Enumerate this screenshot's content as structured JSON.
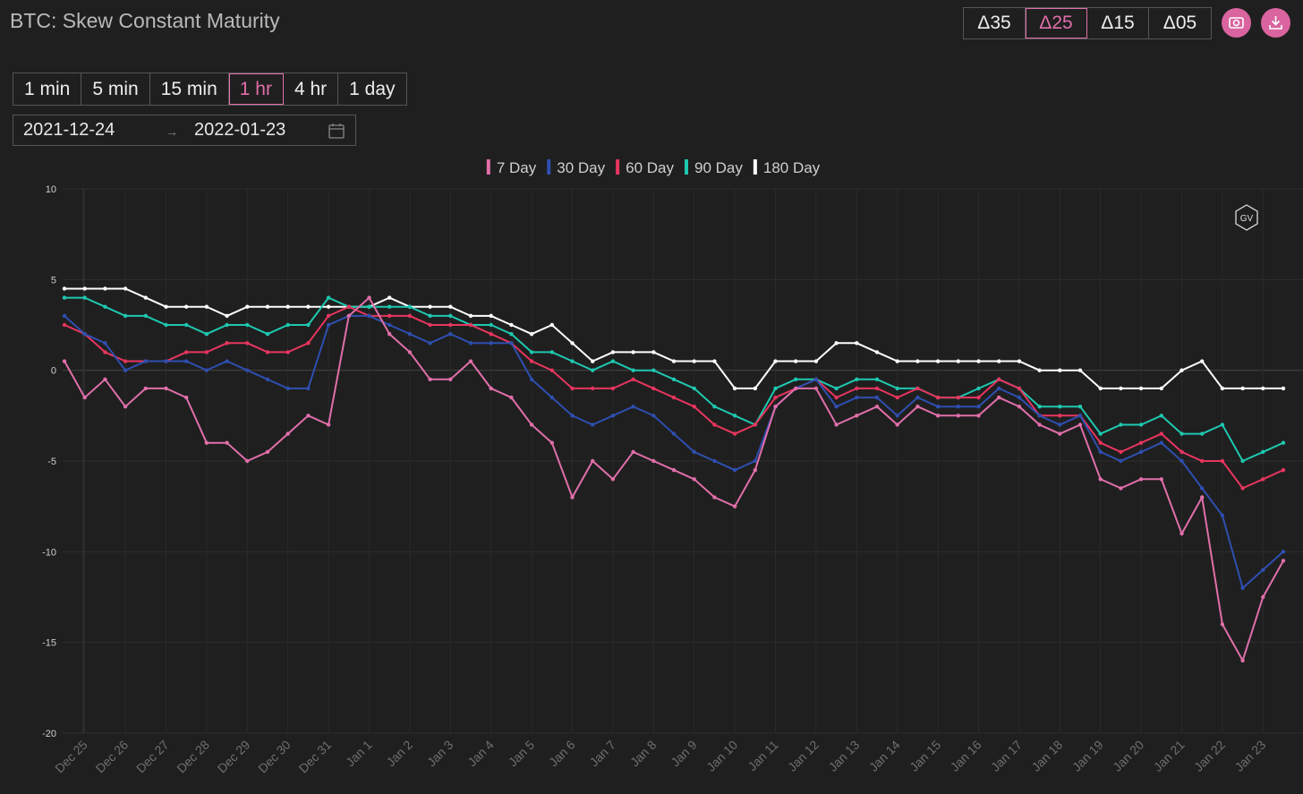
{
  "header": {
    "title": "BTC: Skew Constant Maturity"
  },
  "delta_options": [
    "Δ35",
    "Δ25",
    "Δ15",
    "Δ05"
  ],
  "active_delta": 1,
  "intervals": [
    "1 min",
    "5 min",
    "15 min",
    "1 hr",
    "4 hr",
    "1 day"
  ],
  "active_interval": 3,
  "date_range": {
    "start": "2021-12-24",
    "end": "2022-01-23"
  },
  "watermark": "GV",
  "chart_data": {
    "type": "line",
    "categories": [
      null,
      "Dec 25",
      null,
      "Dec 26",
      null,
      "Dec 27",
      null,
      "Dec 28",
      null,
      "Dec 29",
      null,
      "Dec 30",
      null,
      "Dec 31",
      null,
      "Jan 1",
      null,
      "Jan 2",
      null,
      "Jan 3",
      null,
      "Jan 4",
      null,
      "Jan 5",
      null,
      "Jan 6",
      null,
      "Jan 7",
      null,
      "Jan 8",
      null,
      "Jan 9",
      null,
      "Jan 10",
      null,
      "Jan 11",
      null,
      "Jan 12",
      null,
      "Jan 13",
      null,
      "Jan 14",
      null,
      "Jan 15",
      null,
      "Jan 16",
      null,
      "Jan 17",
      null,
      "Jan 18",
      null,
      "Jan 19",
      null,
      "Jan 20",
      null,
      "Jan 21",
      null,
      "Jan 22",
      null,
      "Jan 23",
      null
    ],
    "series": [
      {
        "name": "7 Day",
        "color": "#e06fa9",
        "values": [
          0.5,
          -1.5,
          -0.5,
          -2,
          -1,
          -1,
          -1.5,
          -4,
          -4,
          -5,
          -4.5,
          -3.5,
          -2.5,
          -3,
          3,
          4,
          2,
          1,
          -0.5,
          -0.5,
          0.5,
          -1,
          -1.5,
          -3,
          -4,
          -7,
          -5,
          -6,
          -4.5,
          -5,
          -5.5,
          -6,
          -7,
          -7.5,
          -5.5,
          -2,
          -1,
          -1,
          -3,
          -2.5,
          -2,
          -3,
          -2,
          -2.5,
          -2.5,
          -2.5,
          -1.5,
          -2,
          -3,
          -3.5,
          -3,
          -6,
          -6.5,
          -6,
          -6,
          -9,
          -7,
          -14,
          -16,
          -12.5,
          -10.5
        ]
      },
      {
        "name": "30 Day",
        "color": "#2e4fb0",
        "values": [
          3,
          2,
          1.5,
          0,
          0.5,
          0.5,
          0.5,
          0,
          0.5,
          0,
          -0.5,
          -1,
          -1,
          2.5,
          3,
          3,
          2.5,
          2,
          1.5,
          2,
          1.5,
          1.5,
          1.5,
          -0.5,
          -1.5,
          -2.5,
          -3,
          -2.5,
          -2,
          -2.5,
          -3.5,
          -4.5,
          -5,
          -5.5,
          -5,
          -2,
          -1,
          -0.5,
          -2,
          -1.5,
          -1.5,
          -2.5,
          -1.5,
          -2,
          -2,
          -2,
          -1,
          -1.5,
          -2.5,
          -3,
          -2.5,
          -4.5,
          -5,
          -4.5,
          -4,
          -5,
          -6.5,
          -8,
          -12,
          -11,
          -10
        ]
      },
      {
        "name": "60 Day",
        "color": "#e8355f",
        "values": [
          2.5,
          2,
          1,
          0.5,
          0.5,
          0.5,
          1,
          1,
          1.5,
          1.5,
          1,
          1,
          1.5,
          3,
          3.5,
          3,
          3,
          3,
          2.5,
          2.5,
          2.5,
          2,
          1.5,
          0.5,
          0,
          -1,
          -1,
          -1,
          -0.5,
          -1,
          -1.5,
          -2,
          -3,
          -3.5,
          -3,
          -1.5,
          -1,
          -0.5,
          -1.5,
          -1,
          -1,
          -1.5,
          -1,
          -1.5,
          -1.5,
          -1.5,
          -0.5,
          -1,
          -2.5,
          -2.5,
          -2.5,
          -4,
          -4.5,
          -4,
          -3.5,
          -4.5,
          -5,
          -5,
          -6.5,
          -6,
          -5.5
        ]
      },
      {
        "name": "90 Day",
        "color": "#1ec8b0",
        "values": [
          4,
          4,
          3.5,
          3,
          3,
          2.5,
          2.5,
          2,
          2.5,
          2.5,
          2,
          2.5,
          2.5,
          4,
          3.5,
          3.5,
          3.5,
          3.5,
          3,
          3,
          2.5,
          2.5,
          2,
          1,
          1,
          0.5,
          0,
          0.5,
          0,
          0,
          -0.5,
          -1,
          -2,
          -2.5,
          -3,
          -1,
          -0.5,
          -0.5,
          -1,
          -0.5,
          -0.5,
          -1,
          -1,
          -1.5,
          -1.5,
          -1,
          -0.5,
          -1,
          -2,
          -2,
          -2,
          -3.5,
          -3,
          -3,
          -2.5,
          -3.5,
          -3.5,
          -3,
          -5,
          -4.5,
          -4
        ]
      },
      {
        "name": "180 Day",
        "color": "#ffffff",
        "values": [
          4.5,
          4.5,
          4.5,
          4.5,
          4,
          3.5,
          3.5,
          3.5,
          3,
          3.5,
          3.5,
          3.5,
          3.5,
          3.5,
          3.5,
          3.5,
          4,
          3.5,
          3.5,
          3.5,
          3,
          3,
          2.5,
          2,
          2.5,
          1.5,
          0.5,
          1,
          1,
          1,
          0.5,
          0.5,
          0.5,
          -1,
          -1,
          0.5,
          0.5,
          0.5,
          1.5,
          1.5,
          1,
          0.5,
          0.5,
          0.5,
          0.5,
          0.5,
          0.5,
          0.5,
          0,
          0,
          0,
          -1,
          -1,
          -1,
          -1,
          0,
          0.5,
          -1,
          -1,
          -1,
          -1
        ]
      }
    ],
    "ylim": [
      -20,
      10
    ],
    "yticks": [
      10,
      5,
      0,
      -5,
      -10,
      -15,
      -20
    ],
    "grid": true
  }
}
